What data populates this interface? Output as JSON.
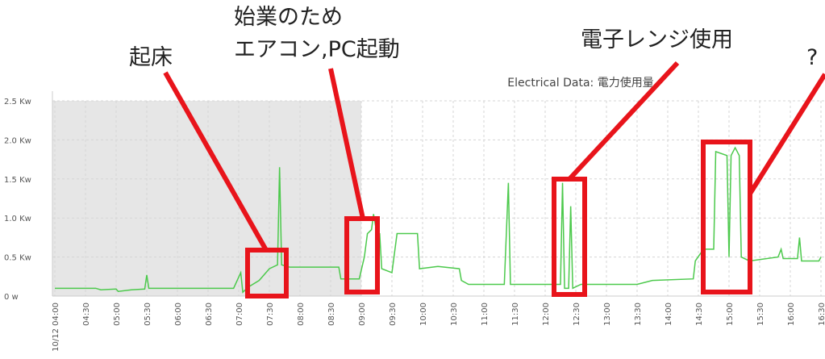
{
  "chart_data": {
    "type": "line",
    "title": "Electrical Data: 電力使用量",
    "annotations": [
      "起床",
      "始業のため",
      "エアコン,PC起動",
      "電子レンジ使用",
      "?"
    ],
    "shaded_range": [
      "04:00",
      "09:00"
    ],
    "xlim": [
      "04:00",
      "16:35"
    ],
    "ylim": [
      0,
      2.5
    ],
    "grid": true,
    "yticks": [
      {
        "value": 0,
        "label": "0 w"
      },
      {
        "value": 0.5,
        "label": "0.5 Kw"
      },
      {
        "value": 1,
        "label": "1.0 Kw"
      },
      {
        "value": 1.5,
        "label": "1.5 Kw"
      },
      {
        "value": 2,
        "label": "2.0 Kw"
      },
      {
        "value": 2.5,
        "label": "2.5 Kw"
      }
    ],
    "xticks": [
      {
        "value": "04:00",
        "label": "10/12 04:00"
      },
      "04:30",
      "05:00",
      "05:30",
      "06:00",
      "06:30",
      "07:00",
      "07:30",
      "08:00",
      "08:30",
      "09:00",
      "09:30",
      "10:00",
      "10:30",
      "11:00",
      "11:30",
      "12:00",
      "12:30",
      "13:00",
      "13:30",
      "14:00",
      "14:30",
      "15:00",
      "15:30",
      "16:00",
      "16:30"
    ],
    "x": [
      "04:00",
      "04:40",
      "04:45",
      "05:00",
      "05:02",
      "05:15",
      "05:28",
      "05:30",
      "05:32",
      "06:30",
      "06:55",
      "07:02",
      "07:04",
      "07:10",
      "07:20",
      "07:30",
      "07:38",
      "07:40",
      "07:42",
      "07:50",
      "08:38",
      "08:40",
      "08:58",
      "09:03",
      "09:06",
      "09:10",
      "09:12",
      "09:15",
      "09:18",
      "09:20",
      "09:30",
      "09:35",
      "09:55",
      "09:57",
      "10:15",
      "10:36",
      "10:38",
      "10:45",
      "11:20",
      "11:24",
      "11:26",
      "12:10",
      "12:15",
      "12:17",
      "12:19",
      "12:23",
      "12:25",
      "12:27",
      "12:35",
      "13:30",
      "13:45",
      "14:25",
      "14:27",
      "14:35",
      "14:45",
      "14:47",
      "14:58",
      "15:00",
      "15:02",
      "15:06",
      "15:10",
      "15:12",
      "15:20",
      "15:48",
      "15:51",
      "15:53",
      "16:07",
      "16:09",
      "16:11",
      "16:28",
      "16:30"
    ],
    "series": [
      {
        "color": "#4cc94c",
        "values": [
          0.1,
          0.1,
          0.08,
          0.09,
          0.06,
          0.08,
          0.09,
          0.27,
          0.1,
          0.1,
          0.1,
          0.3,
          0.05,
          0.12,
          0.2,
          0.35,
          0.4,
          1.65,
          0.4,
          0.37,
          0.37,
          0.22,
          0.22,
          0.5,
          0.8,
          0.85,
          1.05,
          0.82,
          0.8,
          0.35,
          0.3,
          0.8,
          0.8,
          0.35,
          0.38,
          0.35,
          0.2,
          0.15,
          0.15,
          1.45,
          0.15,
          0.15,
          0.15,
          1.45,
          0.1,
          0.1,
          1.15,
          0.1,
          0.15,
          0.15,
          0.2,
          0.22,
          0.45,
          0.6,
          0.6,
          1.85,
          1.8,
          0.5,
          1.8,
          1.9,
          1.8,
          0.5,
          0.45,
          0.5,
          0.6,
          0.48,
          0.48,
          0.75,
          0.45,
          0.45,
          0.5
        ]
      }
    ]
  }
}
